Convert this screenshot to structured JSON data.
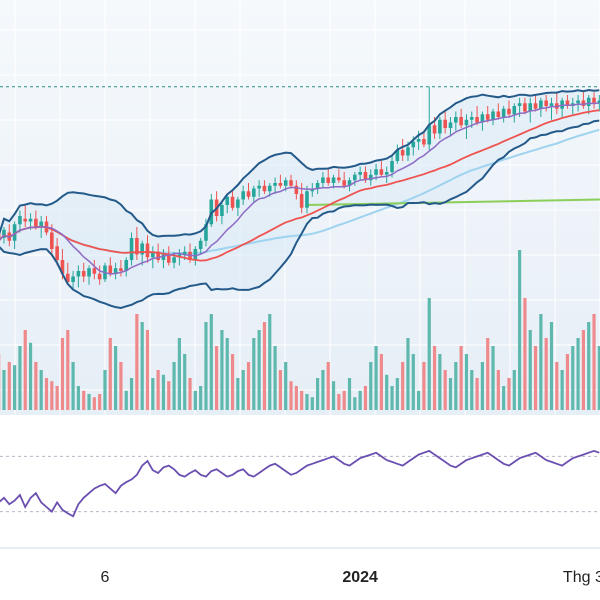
{
  "chart_data": {
    "type": "candlestick",
    "title": "",
    "x_tick_labels": [
      {
        "label": "6",
        "bold": false,
        "bar_index": 20
      },
      {
        "label": "2024",
        "bold": true,
        "bar_index": 68
      },
      {
        "label": "Thg 3",
        "bold": false,
        "bar_index": 110
      }
    ],
    "price_panel": {
      "y_range": [
        0,
        100
      ],
      "reference_level": 83,
      "colors": {
        "up": "#26a69a",
        "down": "#ef5350"
      },
      "bars": [
        [
          30,
          35,
          22,
          27
        ],
        [
          28,
          32,
          26,
          31
        ],
        [
          30,
          33,
          25,
          27
        ],
        [
          27,
          34,
          24,
          33
        ],
        [
          33,
          38,
          30,
          36
        ],
        [
          35,
          40,
          32,
          34
        ],
        [
          34,
          37,
          31,
          35
        ],
        [
          35,
          38,
          31,
          32
        ],
        [
          32,
          36,
          28,
          34
        ],
        [
          34,
          36,
          29,
          30
        ],
        [
          30,
          33,
          22,
          24
        ],
        [
          25,
          28,
          18,
          20
        ],
        [
          20,
          24,
          13,
          15
        ],
        [
          15,
          19,
          11,
          12
        ],
        [
          12,
          16,
          9,
          14
        ],
        [
          14,
          18,
          10,
          16
        ],
        [
          16,
          19,
          12,
          14
        ],
        [
          14,
          18,
          11,
          17
        ],
        [
          17,
          20,
          13,
          15
        ],
        [
          15,
          18,
          11,
          13
        ],
        [
          13,
          19,
          12,
          18
        ],
        [
          18,
          21,
          14,
          15
        ],
        [
          15,
          19,
          13,
          17
        ],
        [
          17,
          20,
          14,
          16
        ],
        [
          16,
          21,
          14,
          20
        ],
        [
          20,
          30,
          18,
          28
        ],
        [
          28,
          32,
          20,
          22
        ],
        [
          22,
          27,
          18,
          26
        ],
        [
          26,
          29,
          19,
          21
        ],
        [
          21,
          25,
          17,
          23
        ],
        [
          23,
          26,
          19,
          20
        ],
        [
          20,
          24,
          17,
          22
        ],
        [
          22,
          25,
          18,
          19
        ],
        [
          19,
          23,
          17,
          21
        ],
        [
          21,
          24,
          18,
          22
        ],
        [
          22,
          25,
          20,
          23
        ],
        [
          23,
          26,
          19,
          20
        ],
        [
          20,
          25,
          18,
          24
        ],
        [
          24,
          28,
          22,
          27
        ],
        [
          27,
          35,
          25,
          33
        ],
        [
          33,
          44,
          32,
          42
        ],
        [
          42,
          45,
          34,
          36
        ],
        [
          36,
          41,
          33,
          40
        ],
        [
          40,
          44,
          37,
          43
        ],
        [
          43,
          45,
          38,
          39
        ],
        [
          39,
          43,
          36,
          42
        ],
        [
          42,
          47,
          40,
          45
        ],
        [
          45,
          48,
          42,
          43
        ],
        [
          43,
          47,
          41,
          46
        ],
        [
          46,
          49,
          43,
          47
        ],
        [
          47,
          49,
          44,
          45
        ],
        [
          45,
          48,
          43,
          47
        ],
        [
          47,
          50,
          44,
          48
        ],
        [
          48,
          51,
          46,
          47
        ],
        [
          47,
          50,
          45,
          49
        ],
        [
          49,
          51,
          46,
          47
        ],
        [
          47,
          49,
          42,
          44
        ],
        [
          44,
          48,
          37,
          39
        ],
        [
          39,
          47,
          37,
          45
        ],
        [
          45,
          48,
          43,
          46
        ],
        [
          46,
          49,
          44,
          48
        ],
        [
          48,
          52,
          46,
          50
        ],
        [
          50,
          53,
          47,
          48
        ],
        [
          48,
          51,
          46,
          50
        ],
        [
          50,
          53,
          48,
          49
        ],
        [
          49,
          52,
          46,
          47
        ],
        [
          47,
          50,
          45,
          49
        ],
        [
          49,
          52,
          47,
          51
        ],
        [
          51,
          54,
          49,
          52
        ],
        [
          52,
          54,
          48,
          49
        ],
        [
          49,
          53,
          47,
          51
        ],
        [
          51,
          55,
          49,
          53
        ],
        [
          53,
          56,
          50,
          51
        ],
        [
          51,
          54,
          48,
          52
        ],
        [
          52,
          58,
          50,
          56
        ],
        [
          56,
          62,
          55,
          60
        ],
        [
          60,
          64,
          56,
          58
        ],
        [
          58,
          63,
          56,
          61
        ],
        [
          61,
          65,
          58,
          63
        ],
        [
          63,
          67,
          60,
          64
        ],
        [
          64,
          67,
          61,
          62
        ],
        [
          62,
          83,
          60,
          69
        ],
        [
          69,
          72,
          64,
          66
        ],
        [
          66,
          72,
          64,
          71
        ],
        [
          71,
          74,
          66,
          68
        ],
        [
          68,
          72,
          65,
          70
        ],
        [
          70,
          74,
          67,
          72
        ],
        [
          72,
          75,
          68,
          69
        ],
        [
          69,
          73,
          64,
          71
        ],
        [
          71,
          74,
          68,
          72
        ],
        [
          72,
          76,
          69,
          70
        ],
        [
          70,
          74,
          67,
          73
        ],
        [
          73,
          76,
          70,
          71
        ],
        [
          71,
          75,
          69,
          74
        ],
        [
          74,
          77,
          71,
          72
        ],
        [
          72,
          76,
          70,
          75
        ],
        [
          75,
          78,
          72,
          73
        ],
        [
          73,
          77,
          70,
          76
        ],
        [
          76,
          79,
          72,
          77
        ],
        [
          77,
          79,
          73,
          74
        ],
        [
          74,
          79,
          70,
          77
        ],
        [
          77,
          80,
          74,
          75
        ],
        [
          75,
          79,
          72,
          78
        ],
        [
          78,
          80,
          74,
          76
        ],
        [
          76,
          79,
          71,
          77
        ],
        [
          77,
          81,
          73,
          75
        ],
        [
          75,
          79,
          72,
          78
        ],
        [
          78,
          80,
          75,
          76
        ],
        [
          76,
          79,
          73,
          77
        ],
        [
          77,
          80,
          74,
          78
        ],
        [
          78,
          81,
          75,
          76
        ],
        [
          76,
          80,
          73,
          79
        ],
        [
          79,
          81,
          75,
          77
        ],
        [
          77,
          80,
          74,
          78
        ]
      ]
    },
    "volume_panel": {
      "values": [
        35,
        25,
        30,
        28,
        40,
        50,
        42,
        30,
        25,
        20,
        18,
        15,
        45,
        50,
        30,
        15,
        12,
        10,
        8,
        10,
        25,
        45,
        40,
        30,
        12,
        20,
        60,
        55,
        50,
        20,
        25,
        22,
        18,
        30,
        45,
        35,
        20,
        12,
        15,
        55,
        60,
        40,
        50,
        45,
        35,
        20,
        25,
        30,
        45,
        50,
        55,
        60,
        40,
        25,
        30,
        18,
        15,
        12,
        10,
        8,
        20,
        25,
        30,
        18,
        10,
        12,
        20,
        8,
        12,
        15,
        30,
        40,
        35,
        22,
        15,
        20,
        30,
        45,
        35,
        12,
        30,
        70,
        40,
        35,
        25,
        20,
        30,
        40,
        35,
        25,
        20,
        30,
        45,
        40,
        25,
        15,
        20,
        25,
        100,
        70,
        50,
        40,
        60,
        45,
        55,
        30,
        25,
        35,
        40,
        45,
        50,
        55,
        60,
        40
      ],
      "colors": {
        "up": "#5fb8ae",
        "down": "#ef8a8c"
      }
    },
    "oscillator_panel": {
      "y_range": [
        0,
        100
      ],
      "upper_level": 80,
      "lower_level": 20,
      "series": {
        "color": "#6a4fb0",
        "values": [
          30,
          35,
          28,
          32,
          38,
          25,
          35,
          40,
          30,
          25,
          20,
          30,
          22,
          18,
          15,
          28,
          35,
          40,
          45,
          48,
          50,
          45,
          40,
          48,
          52,
          55,
          60,
          70,
          75,
          65,
          62,
          68,
          70,
          66,
          60,
          58,
          62,
          65,
          60,
          58,
          64,
          66,
          62,
          58,
          60,
          64,
          66,
          60,
          58,
          62,
          66,
          70,
          72,
          68,
          64,
          60,
          62,
          66,
          70,
          72,
          74,
          76,
          78,
          80,
          76,
          72,
          70,
          74,
          78,
          80,
          82,
          84,
          80,
          76,
          74,
          72,
          70,
          74,
          78,
          82,
          84,
          86,
          82,
          78,
          74,
          70,
          68,
          72,
          76,
          78,
          80,
          82,
          84,
          80,
          76,
          72,
          70,
          74,
          78,
          80,
          82,
          84,
          80,
          76,
          74,
          72,
          70,
          74,
          78,
          80,
          82,
          84,
          86,
          84
        ]
      }
    }
  }
}
